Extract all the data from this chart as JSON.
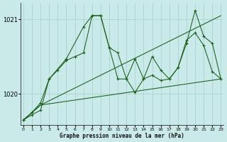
{
  "xlabel": "Graphe pression niveau de la mer (hPa)",
  "bg_color": "#caeaea",
  "grid_color": "#aad4d4",
  "line_color": "#1a5c1a",
  "ylim": [
    1019.58,
    1021.22
  ],
  "yticks": [
    1020,
    1021
  ],
  "xlim": [
    -0.3,
    23.3
  ],
  "xticks": [
    0,
    1,
    2,
    3,
    4,
    5,
    6,
    7,
    8,
    9,
    10,
    11,
    12,
    13,
    14,
    15,
    16,
    17,
    18,
    19,
    20,
    21,
    22,
    23
  ],
  "line1_x": [
    0,
    1,
    2,
    3,
    4,
    5,
    6,
    7,
    8,
    9,
    10,
    11,
    12,
    13,
    14,
    15,
    16,
    17,
    18,
    19,
    20,
    21,
    22,
    23
  ],
  "line1_y": [
    1019.65,
    1019.72,
    1019.78,
    1020.2,
    1020.32,
    1020.45,
    1020.5,
    1020.55,
    1021.05,
    1021.05,
    1020.62,
    1020.2,
    1020.2,
    1020.02,
    1020.2,
    1020.25,
    1020.18,
    1020.2,
    1020.35,
    1020.72,
    1020.82,
    1020.65,
    1020.3,
    1020.2
  ],
  "line2_x": [
    0,
    2,
    23
  ],
  "line2_y": [
    1019.65,
    1019.85,
    1020.2
  ],
  "line3_x": [
    0,
    1,
    2,
    3,
    5,
    7,
    8,
    9,
    10,
    11,
    12,
    13,
    14,
    15,
    16,
    17,
    18,
    19,
    20,
    21,
    22,
    23
  ],
  "line3_y": [
    1019.65,
    1019.75,
    1019.88,
    1020.2,
    1020.47,
    1020.9,
    1021.05,
    1021.05,
    1020.62,
    1020.55,
    1020.2,
    1020.47,
    1020.2,
    1020.5,
    1020.32,
    1020.2,
    1020.35,
    1020.68,
    1021.12,
    1020.77,
    1020.68,
    1020.2
  ],
  "line4_x": [
    0,
    2,
    23
  ],
  "line4_y": [
    1019.65,
    1019.85,
    1021.05
  ]
}
